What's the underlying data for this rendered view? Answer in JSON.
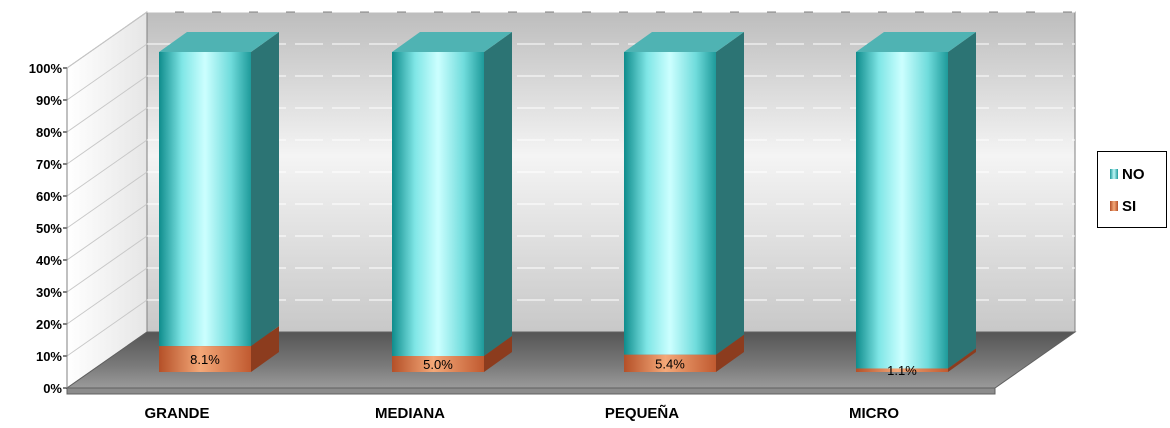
{
  "chart_data": {
    "type": "bar",
    "stacked": true,
    "percent_stacked": true,
    "three_d": true,
    "categories": [
      "GRANDE",
      "MEDIANA",
      "PEQUEÑA",
      "MICRO"
    ],
    "series": [
      {
        "name": "SI",
        "values": [
          8.1,
          5.0,
          5.4,
          1.1
        ],
        "labels": [
          "8.1%",
          "5.0%",
          "5.4%",
          "1.1%"
        ],
        "color": "#c8643c"
      },
      {
        "name": "NO",
        "values": [
          91.9,
          95.0,
          94.6,
          98.9
        ],
        "color": "#3cc8c8"
      }
    ],
    "yticks": [
      "0%",
      "10%",
      "20%",
      "30%",
      "40%",
      "50%",
      "60%",
      "70%",
      "80%",
      "90%",
      "100%"
    ],
    "ylim": [
      0,
      100
    ],
    "grid": true,
    "legend_position": "right"
  }
}
